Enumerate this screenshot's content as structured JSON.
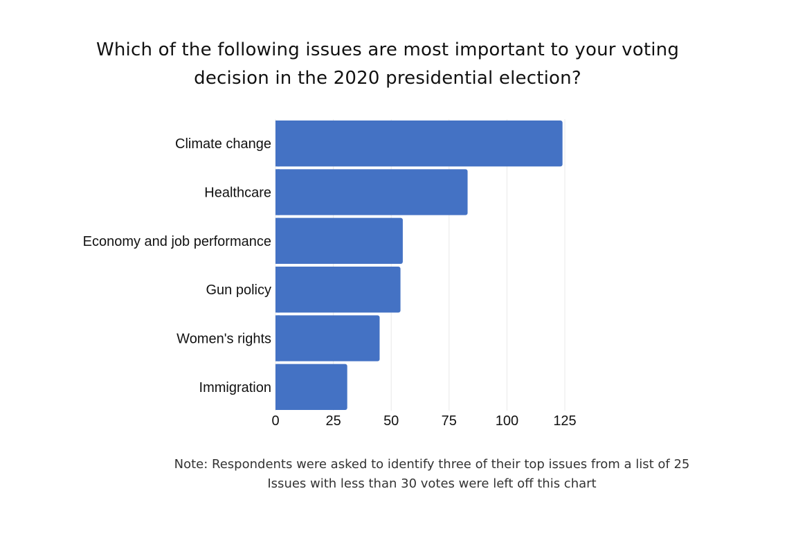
{
  "title": {
    "line1": "Which of the following issues are most important to your voting",
    "line2": "decision in the 2020 presidential election?"
  },
  "note": {
    "line1": "Note: Respondents were asked to identify three of their top issues from a list of 25",
    "line2": "Issues with less than 30 votes were left off this chart"
  },
  "colors": {
    "bar": "#4472c4",
    "grid": "#e8e8e8"
  },
  "chart_data": {
    "type": "bar",
    "orientation": "horizontal",
    "categories": [
      "Climate change",
      "Healthcare",
      "Economy and job performance",
      "Gun policy",
      "Women's rights",
      "Immigration"
    ],
    "values": [
      124,
      83,
      55,
      54,
      45,
      31
    ],
    "xlim": [
      0,
      125
    ],
    "xticks": [
      "0",
      "25",
      "50",
      "75",
      "100",
      "125"
    ],
    "grid": true
  }
}
